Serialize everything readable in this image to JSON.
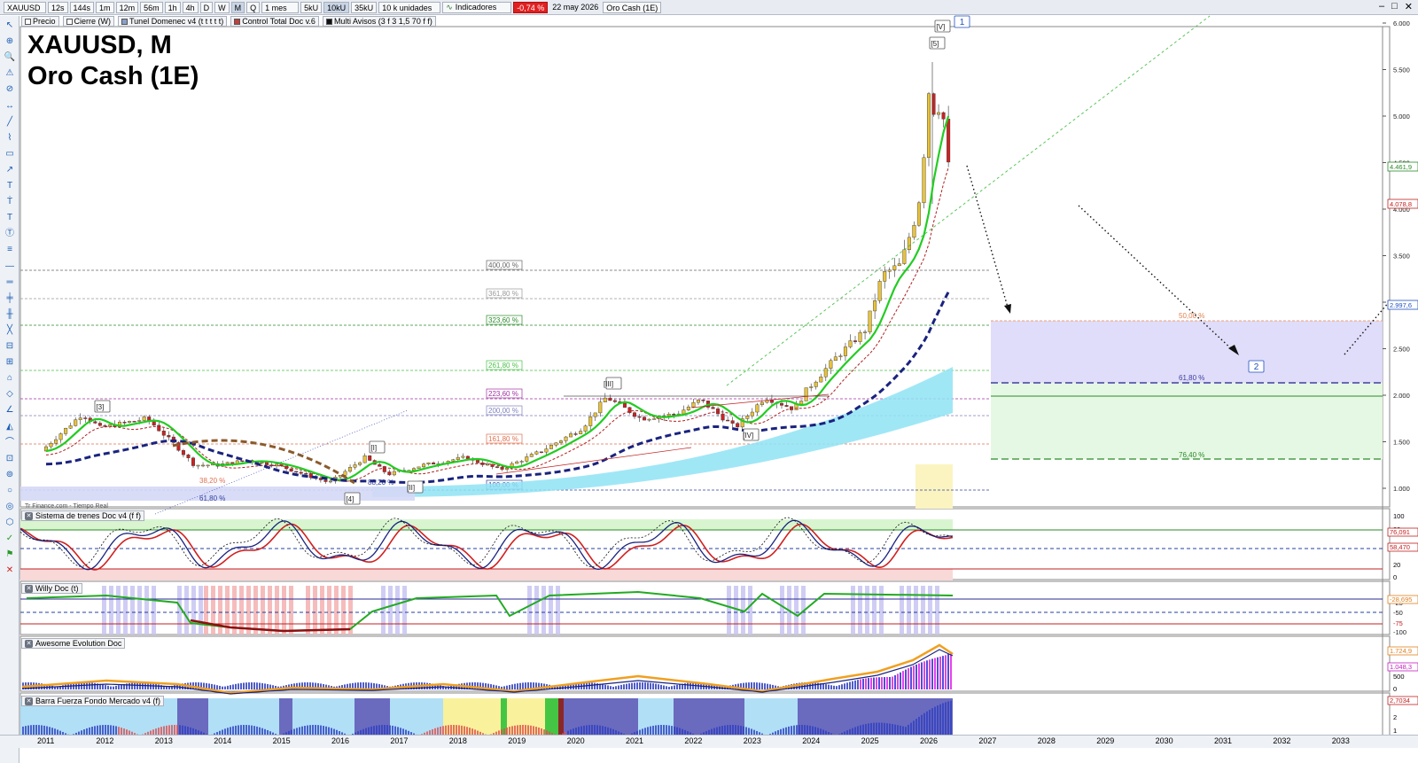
{
  "toolbar": {
    "symbol": "XAUUSD",
    "buttons": [
      "12s",
      "144s",
      "1m",
      "12m",
      "56m",
      "1h",
      "4h",
      "D",
      "W",
      "M",
      "Q"
    ],
    "selected_button": "M",
    "period": "1 mes",
    "units": [
      "5kU",
      "10kU",
      "35kU"
    ],
    "selected_unit": "10kU",
    "units_dropdown": "10 k unidades",
    "indicators_label": "Indicadores",
    "change": "-0,74 %",
    "date": "22 may 2026",
    "instrument_name": "Oro Cash (1E)"
  },
  "legend": {
    "items": [
      "Precio",
      "Cierre (W)",
      "Tunel Domenec v4 (t t t t t)",
      "Control Total Doc v.6",
      "Multi Avisos (3 f 3 1,5 70 f f)"
    ]
  },
  "title": {
    "line1": "XAUUSD, M",
    "line2": "Oro Cash (1E)"
  },
  "watermark": "Tr Finance.com - Tiempo Real",
  "price_axis": {
    "ticks": [
      "6.000",
      "5.500",
      "5.000",
      "4.500",
      "4.000",
      "3.500",
      "3.000",
      "2.500",
      "2.000",
      "1.500",
      "1.000"
    ],
    "tags": [
      "4.461,9",
      "4.078,8",
      "2.997,6"
    ]
  },
  "fib_labels": [
    "400,00 %",
    "361,80 %",
    "323,60 %",
    "261,80 %",
    "223,60 %",
    "200,00 %",
    "161,80 %",
    "100,00 %"
  ],
  "right_zone_labels": [
    "50,00 %",
    "61,80 %",
    "76,40 %"
  ],
  "lower_fibs": [
    "61,80 %",
    "88,20 %",
    "38,20 %"
  ],
  "wave_labels": [
    "[3]",
    "[I]",
    "[II]",
    "[4]",
    "[III]",
    "[IV]",
    "[5]",
    "[V]",
    "1",
    "2"
  ],
  "panels": [
    {
      "name": "Sistema de trenes Doc v4 (f f)",
      "ticks": [
        "100",
        "80",
        "50",
        "20",
        "0"
      ],
      "tags": [
        "76,091",
        "58,470"
      ]
    },
    {
      "name": "Willy Doc (t)",
      "ticks": [
        "-25",
        "-50",
        "-75",
        "-100"
      ],
      "tags": [
        "-28,695"
      ]
    },
    {
      "name": "Awesome Evolution Doc",
      "ticks": [
        "500",
        "0"
      ],
      "tags": [
        "1.724,9",
        "1.048,3"
      ]
    },
    {
      "name": "Barra Fuerza Fondo Mercado v4 (f)",
      "ticks": [
        "2",
        "1",
        "0,5000"
      ],
      "tags": [
        "2,7034"
      ]
    }
  ],
  "x_axis": {
    "years": [
      "2011",
      "2012",
      "2013",
      "2014",
      "2015",
      "2016",
      "2017",
      "2018",
      "2019",
      "2020",
      "2021",
      "2022",
      "2023",
      "2024",
      "2025",
      "2026",
      "2027",
      "2028",
      "2029",
      "2030",
      "2031",
      "2032",
      "2033"
    ]
  },
  "colors": {
    "price_up": "#e8c23a",
    "price_down": "#cc2222",
    "ma_green": "#22cc22",
    "ma_blue": "#1a237e",
    "cloud_cyan": "#8fe3f5",
    "zone_violet": "#dcd9f8",
    "zone_green": "#e2f7e0"
  }
}
